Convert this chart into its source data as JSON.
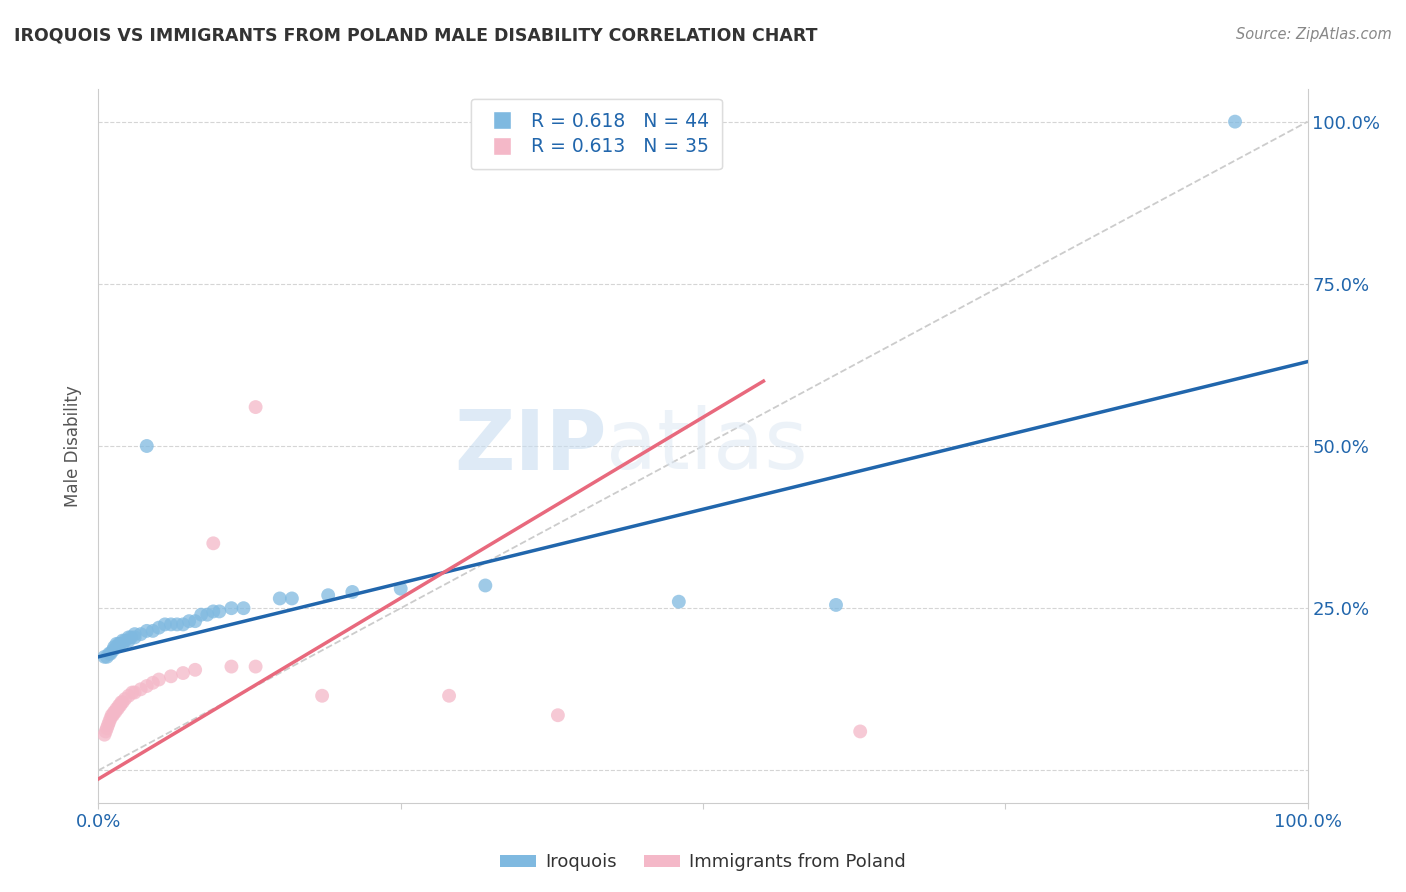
{
  "title": "IROQUOIS VS IMMIGRANTS FROM POLAND MALE DISABILITY CORRELATION CHART",
  "source": "Source: ZipAtlas.com",
  "ylabel": "Male Disability",
  "xlabel": "",
  "xlim": [
    0.0,
    1.0
  ],
  "ylim": [
    -0.05,
    1.05
  ],
  "legend_R1": "R = 0.618",
  "legend_N1": "N = 44",
  "legend_R2": "R = 0.613",
  "legend_N2": "N = 35",
  "blue_color": "#7fb9e0",
  "pink_color": "#f4b8c8",
  "blue_line_color": "#2166ac",
  "pink_line_color": "#e8697d",
  "blue_scatter": [
    [
      0.005,
      0.175
    ],
    [
      0.007,
      0.175
    ],
    [
      0.009,
      0.18
    ],
    [
      0.01,
      0.18
    ],
    [
      0.012,
      0.185
    ],
    [
      0.013,
      0.19
    ],
    [
      0.015,
      0.19
    ],
    [
      0.015,
      0.195
    ],
    [
      0.017,
      0.195
    ],
    [
      0.018,
      0.195
    ],
    [
      0.02,
      0.195
    ],
    [
      0.02,
      0.2
    ],
    [
      0.022,
      0.2
    ],
    [
      0.025,
      0.2
    ],
    [
      0.025,
      0.205
    ],
    [
      0.027,
      0.205
    ],
    [
      0.03,
      0.205
    ],
    [
      0.03,
      0.21
    ],
    [
      0.035,
      0.21
    ],
    [
      0.04,
      0.215
    ],
    [
      0.045,
      0.215
    ],
    [
      0.05,
      0.22
    ],
    [
      0.055,
      0.225
    ],
    [
      0.06,
      0.225
    ],
    [
      0.065,
      0.225
    ],
    [
      0.07,
      0.225
    ],
    [
      0.075,
      0.23
    ],
    [
      0.08,
      0.23
    ],
    [
      0.085,
      0.24
    ],
    [
      0.09,
      0.24
    ],
    [
      0.095,
      0.245
    ],
    [
      0.1,
      0.245
    ],
    [
      0.11,
      0.25
    ],
    [
      0.12,
      0.25
    ],
    [
      0.04,
      0.5
    ],
    [
      0.15,
      0.265
    ],
    [
      0.16,
      0.265
    ],
    [
      0.19,
      0.27
    ],
    [
      0.21,
      0.275
    ],
    [
      0.25,
      0.28
    ],
    [
      0.32,
      0.285
    ],
    [
      0.48,
      0.26
    ],
    [
      0.61,
      0.255
    ],
    [
      0.94,
      1.0
    ]
  ],
  "pink_scatter": [
    [
      0.005,
      0.055
    ],
    [
      0.006,
      0.06
    ],
    [
      0.007,
      0.065
    ],
    [
      0.008,
      0.07
    ],
    [
      0.009,
      0.075
    ],
    [
      0.01,
      0.08
    ],
    [
      0.011,
      0.085
    ],
    [
      0.012,
      0.085
    ],
    [
      0.013,
      0.09
    ],
    [
      0.014,
      0.09
    ],
    [
      0.015,
      0.095
    ],
    [
      0.016,
      0.095
    ],
    [
      0.017,
      0.1
    ],
    [
      0.018,
      0.1
    ],
    [
      0.019,
      0.105
    ],
    [
      0.02,
      0.105
    ],
    [
      0.022,
      0.11
    ],
    [
      0.025,
      0.115
    ],
    [
      0.028,
      0.12
    ],
    [
      0.03,
      0.12
    ],
    [
      0.035,
      0.125
    ],
    [
      0.04,
      0.13
    ],
    [
      0.045,
      0.135
    ],
    [
      0.05,
      0.14
    ],
    [
      0.06,
      0.145
    ],
    [
      0.07,
      0.15
    ],
    [
      0.08,
      0.155
    ],
    [
      0.095,
      0.35
    ],
    [
      0.11,
      0.16
    ],
    [
      0.13,
      0.16
    ],
    [
      0.13,
      0.56
    ],
    [
      0.185,
      0.115
    ],
    [
      0.29,
      0.115
    ],
    [
      0.38,
      0.085
    ],
    [
      0.63,
      0.06
    ]
  ],
  "blue_line": [
    [
      0.0,
      0.175
    ],
    [
      1.0,
      0.63
    ]
  ],
  "pink_line": [
    [
      -0.015,
      -0.03
    ],
    [
      0.55,
      0.6
    ]
  ],
  "ref_line": [
    [
      0.0,
      0.0
    ],
    [
      1.0,
      1.0
    ]
  ],
  "watermark_zip": "ZIP",
  "watermark_atlas": "atlas",
  "background_color": "#ffffff",
  "grid_color": "#d5d5d5"
}
